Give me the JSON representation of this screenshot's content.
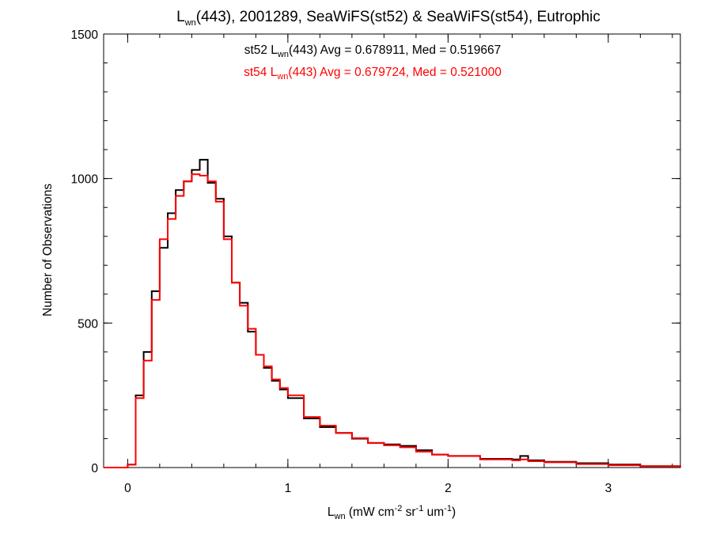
{
  "chart_data": {
    "type": "line",
    "title": {
      "pre": "L",
      "sub": "wn",
      "post": "(443), 2001289, SeaWiFS(st52) & SeaWiFS(st54), Eutrophic"
    },
    "xlabel": {
      "pre": "L",
      "sub": "wn",
      "mid1": " (mW cm",
      "sup1": "-2",
      "mid2": " sr",
      "sup2": "-1",
      "mid3": " um",
      "sup3": "-1",
      "post": ")"
    },
    "ylabel": "Number of Observations",
    "xlim": [
      -0.15,
      3.45
    ],
    "ylim": [
      0,
      1500
    ],
    "x_ticks": [
      0,
      1,
      2,
      3
    ],
    "x_tick_labels": [
      "0",
      "1",
      "2",
      "3"
    ],
    "y_ticks": [
      0,
      500,
      1000,
      1500
    ],
    "y_tick_labels": [
      "0",
      "500",
      "1000",
      "1500"
    ],
    "x_minor_step": 0.2,
    "y_minor_step": 100,
    "grid": false,
    "legend": [
      {
        "color": "#000000",
        "pre": "st52 L",
        "sub": "wn",
        "post": "(443) Avg = 0.678911, Med = 0.519667"
      },
      {
        "color": "#ff0000",
        "pre": "st54 L",
        "sub": "wn",
        "post": "(443) Avg = 0.679724, Med = 0.521000"
      }
    ],
    "x": [
      -0.15,
      0.0,
      0.05,
      0.1,
      0.15,
      0.2,
      0.25,
      0.3,
      0.35,
      0.4,
      0.45,
      0.5,
      0.55,
      0.6,
      0.65,
      0.7,
      0.75,
      0.8,
      0.85,
      0.9,
      0.95,
      1.0,
      1.1,
      1.2,
      1.3,
      1.4,
      1.5,
      1.6,
      1.7,
      1.8,
      1.9,
      2.0,
      2.2,
      2.4,
      2.45,
      2.5,
      2.6,
      2.8,
      3.0,
      3.2,
      3.45
    ],
    "series": [
      {
        "color": "#000000",
        "values": [
          0,
          10,
          250,
          400,
          610,
          760,
          880,
          960,
          990,
          1030,
          1065,
          985,
          930,
          800,
          640,
          570,
          470,
          390,
          345,
          300,
          270,
          240,
          170,
          140,
          120,
          100,
          85,
          80,
          75,
          60,
          45,
          40,
          30,
          28,
          40,
          25,
          20,
          15,
          10,
          5,
          2
        ]
      },
      {
        "color": "#ff0000",
        "values": [
          0,
          10,
          240,
          370,
          580,
          790,
          860,
          940,
          990,
          1015,
          1010,
          990,
          920,
          790,
          640,
          560,
          480,
          390,
          350,
          305,
          275,
          250,
          175,
          145,
          120,
          102,
          85,
          77,
          70,
          55,
          45,
          40,
          28,
          25,
          28,
          22,
          18,
          12,
          8,
          5,
          2
        ]
      }
    ]
  }
}
